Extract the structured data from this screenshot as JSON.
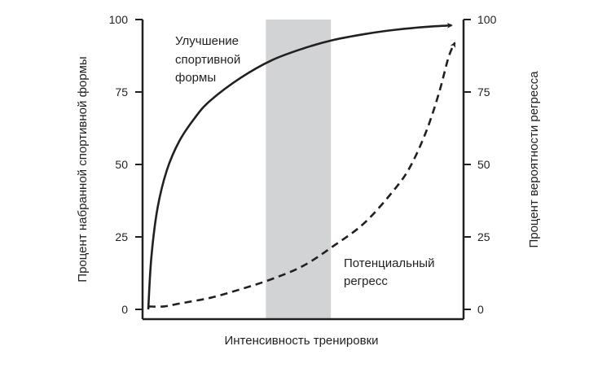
{
  "chart_data": {
    "type": "line",
    "title": "",
    "xlabel": "Интенсивность тренировки",
    "ylabel_left": "Процент набранной спортивной формы",
    "ylabel_right": "Процент вероятности регресса",
    "ylim": [
      0,
      100
    ],
    "xlim": [
      0,
      100
    ],
    "yticks_left": [
      "0",
      "25",
      "50",
      "75",
      "100"
    ],
    "yticks_right": [
      "0",
      "25",
      "50",
      "75",
      "100"
    ],
    "shaded_band": {
      "x_from": 38,
      "x_to": 59,
      "color": "#d1d3d4"
    },
    "grid": false,
    "legend": "none",
    "series": [
      {
        "style": "solid",
        "color": "#231f20",
        "annotation": [
          "Улучшение",
          "спортивной",
          "формы"
        ],
        "x": [
          0,
          1,
          3,
          6,
          10,
          15,
          20,
          30,
          40,
          50,
          60,
          70,
          80,
          90,
          98
        ],
        "y": [
          0,
          18,
          35,
          48,
          58,
          66,
          72,
          80,
          86,
          90,
          93,
          95,
          96.5,
          97.5,
          98
        ]
      },
      {
        "style": "dashed",
        "color": "#231f20",
        "annotation": [
          "Потенциальный",
          "регресс"
        ],
        "x": [
          0,
          5,
          10,
          20,
          30,
          40,
          50,
          60,
          70,
          80,
          85,
          90,
          94,
          97,
          99
        ],
        "y": [
          1,
          1,
          2,
          4,
          7,
          10.5,
          15,
          22,
          30,
          42,
          50,
          62,
          75,
          87,
          92
        ]
      }
    ]
  }
}
